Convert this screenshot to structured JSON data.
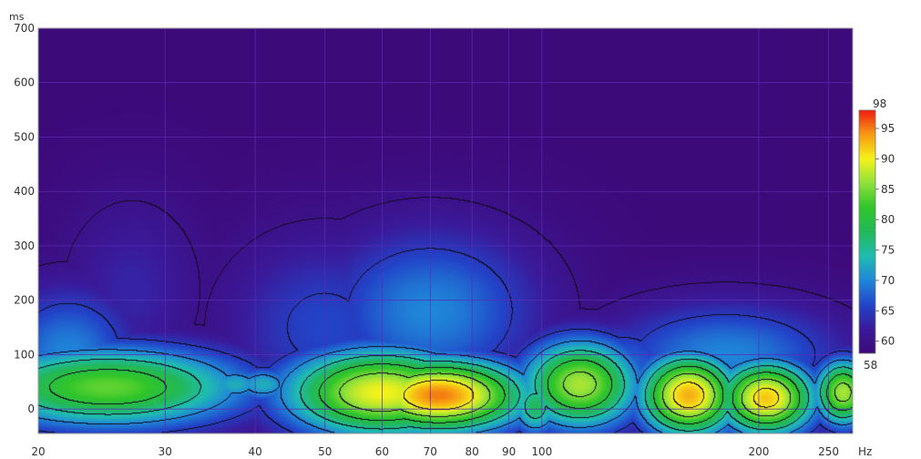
{
  "chart_data": {
    "type": "heatmap",
    "subtype": "spectrogram-waterfall",
    "x_unit": "Hz",
    "y_unit": "ms",
    "x_scale": "log",
    "xlim": [
      20,
      270
    ],
    "ylim": [
      -45,
      700
    ],
    "x_ticks": [
      {
        "value": 20,
        "label": "20"
      },
      {
        "value": 30,
        "label": "30"
      },
      {
        "value": 40,
        "label": "40"
      },
      {
        "value": 50,
        "label": "50"
      },
      {
        "value": 60,
        "label": "60"
      },
      {
        "value": 70,
        "label": "70"
      },
      {
        "value": 80,
        "label": "80"
      },
      {
        "value": 90,
        "label": "90"
      },
      {
        "value": 100,
        "label": "100"
      },
      {
        "value": 200,
        "label": "200"
      },
      {
        "value": 250,
        "label": "250"
      }
    ],
    "y_ticks": [
      {
        "value": 0,
        "label": "0"
      },
      {
        "value": 100,
        "label": "100"
      },
      {
        "value": 200,
        "label": "200"
      },
      {
        "value": 300,
        "label": "300"
      },
      {
        "value": 400,
        "label": "400"
      },
      {
        "value": 500,
        "label": "500"
      },
      {
        "value": 600,
        "label": "600"
      },
      {
        "value": 700,
        "label": "700"
      }
    ],
    "colorbar": {
      "min": 58,
      "max": 98,
      "min_label": "58",
      "max_label": "98",
      "ticks": [
        {
          "value": 95,
          "label": "95"
        },
        {
          "value": 90,
          "label": "90"
        },
        {
          "value": 85,
          "label": "85"
        },
        {
          "value": 80,
          "label": "80"
        },
        {
          "value": 75,
          "label": "75"
        },
        {
          "value": 70,
          "label": "70"
        },
        {
          "value": 65,
          "label": "65"
        },
        {
          "value": 60,
          "label": "60"
        }
      ],
      "stops": [
        {
          "value": 58,
          "color": "#3d0a7a"
        },
        {
          "value": 62,
          "color": "#3a1a9a"
        },
        {
          "value": 66,
          "color": "#2244c8"
        },
        {
          "value": 70,
          "color": "#1f86d8"
        },
        {
          "value": 74,
          "color": "#1fbcb0"
        },
        {
          "value": 78,
          "color": "#22b85a"
        },
        {
          "value": 82,
          "color": "#30c52a"
        },
        {
          "value": 86,
          "color": "#8fe03a"
        },
        {
          "value": 90,
          "color": "#f5f21a"
        },
        {
          "value": 94,
          "color": "#f79a12"
        },
        {
          "value": 98,
          "color": "#ee1c10"
        }
      ]
    },
    "background_color": "#3d0a7a",
    "grid": true,
    "grid_color": "#5a2db5",
    "contour_levels": [
      60,
      65,
      70,
      75,
      80,
      85,
      90,
      95
    ],
    "peaks": [
      {
        "x": 25,
        "y": 40,
        "x_width": 0.14,
        "y_width": 55,
        "value": 84
      },
      {
        "x": 27,
        "y": 220,
        "x_width": 0.07,
        "y_width": 120,
        "value": 63
      },
      {
        "x": 37.5,
        "y": 45,
        "x_width": 0.035,
        "y_width": 25,
        "value": 73
      },
      {
        "x": 41,
        "y": 45,
        "x_width": 0.035,
        "y_width": 25,
        "value": 73
      },
      {
        "x": 50,
        "y": 150,
        "x_width": 0.1,
        "y_width": 120,
        "value": 66
      },
      {
        "x": 60,
        "y": 30,
        "x_width": 0.1,
        "y_width": 60,
        "value": 90
      },
      {
        "x": 72,
        "y": 25,
        "x_width": 0.09,
        "y_width": 50,
        "value": 95
      },
      {
        "x": 70,
        "y": 180,
        "x_width": 0.11,
        "y_width": 110,
        "value": 70
      },
      {
        "x": 98,
        "y": 5,
        "x_width": 0.025,
        "y_width": 40,
        "value": 78
      },
      {
        "x": 113,
        "y": 45,
        "x_width": 0.06,
        "y_width": 60,
        "value": 87
      },
      {
        "x": 160,
        "y": 25,
        "x_width": 0.05,
        "y_width": 55,
        "value": 93
      },
      {
        "x": 205,
        "y": 20,
        "x_width": 0.05,
        "y_width": 50,
        "value": 92
      },
      {
        "x": 262,
        "y": 30,
        "x_width": 0.03,
        "y_width": 45,
        "value": 87
      },
      {
        "x": 180,
        "y": 100,
        "x_width": 0.12,
        "y_width": 70,
        "value": 70
      },
      {
        "x": 130,
        "y": 80,
        "x_width": 0.06,
        "y_width": 60,
        "value": 68
      },
      {
        "x": 22,
        "y": 100,
        "x_width": 0.07,
        "y_width": 90,
        "value": 70
      }
    ]
  }
}
